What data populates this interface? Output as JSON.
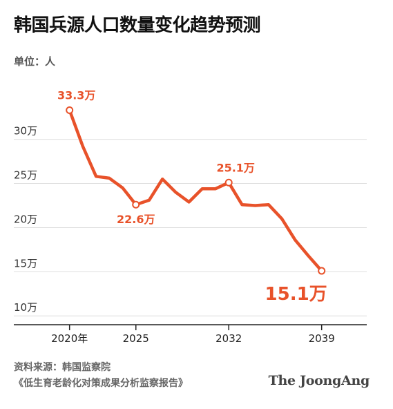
{
  "title": "韩国兵源人口数量变化趋势预测",
  "unit_label": "单位：人",
  "source_line1": "资料来源：韩国监察院",
  "source_line2": "《低生育老龄化对策成果分析监察报告》",
  "brand": "The JoongAng",
  "colors": {
    "line": "#e8522a",
    "grid": "#dddddd",
    "axis": "#222222",
    "text": "#333333"
  },
  "chart_data": {
    "type": "line",
    "title": "韩国兵源人口数量变化趋势预测",
    "ylabel": "单位：人",
    "ylim": [
      9,
      36
    ],
    "xlim": [
      2015.8,
      2042.4
    ],
    "grid": true,
    "y_ticks": [
      {
        "value": 10,
        "label": "10万"
      },
      {
        "value": 15,
        "label": "15万"
      },
      {
        "value": 20,
        "label": "20万"
      },
      {
        "value": 25,
        "label": "25万"
      },
      {
        "value": 30,
        "label": "30万"
      }
    ],
    "x_ticks": [
      {
        "value": 2020,
        "label": "2020年"
      },
      {
        "value": 2025,
        "label": "2025"
      },
      {
        "value": 2032,
        "label": "2032"
      },
      {
        "value": 2039,
        "label": "2039"
      }
    ],
    "series": [
      {
        "x": [
          2020,
          2021,
          2022,
          2023,
          2024,
          2025,
          2026,
          2027,
          2028,
          2029,
          2030,
          2031,
          2032,
          2033,
          2034,
          2035,
          2036,
          2037,
          2038,
          2039
        ],
        "values": [
          33.3,
          29.2,
          25.8,
          25.6,
          24.5,
          22.6,
          23.1,
          25.5,
          24.0,
          22.9,
          24.4,
          24.4,
          25.1,
          22.6,
          22.5,
          22.6,
          21.0,
          18.6,
          16.8,
          15.1
        ]
      }
    ],
    "annotations": [
      {
        "x": 2020,
        "y": 33.3,
        "text": "33.3万",
        "position": "above"
      },
      {
        "x": 2025,
        "y": 22.6,
        "text": "22.6万",
        "position": "below"
      },
      {
        "x": 2032,
        "y": 25.1,
        "text": "25.1万",
        "position": "above"
      },
      {
        "x": 2039,
        "y": 15.1,
        "text": "15.1万",
        "position": "below-left",
        "emphasis": true
      }
    ]
  }
}
